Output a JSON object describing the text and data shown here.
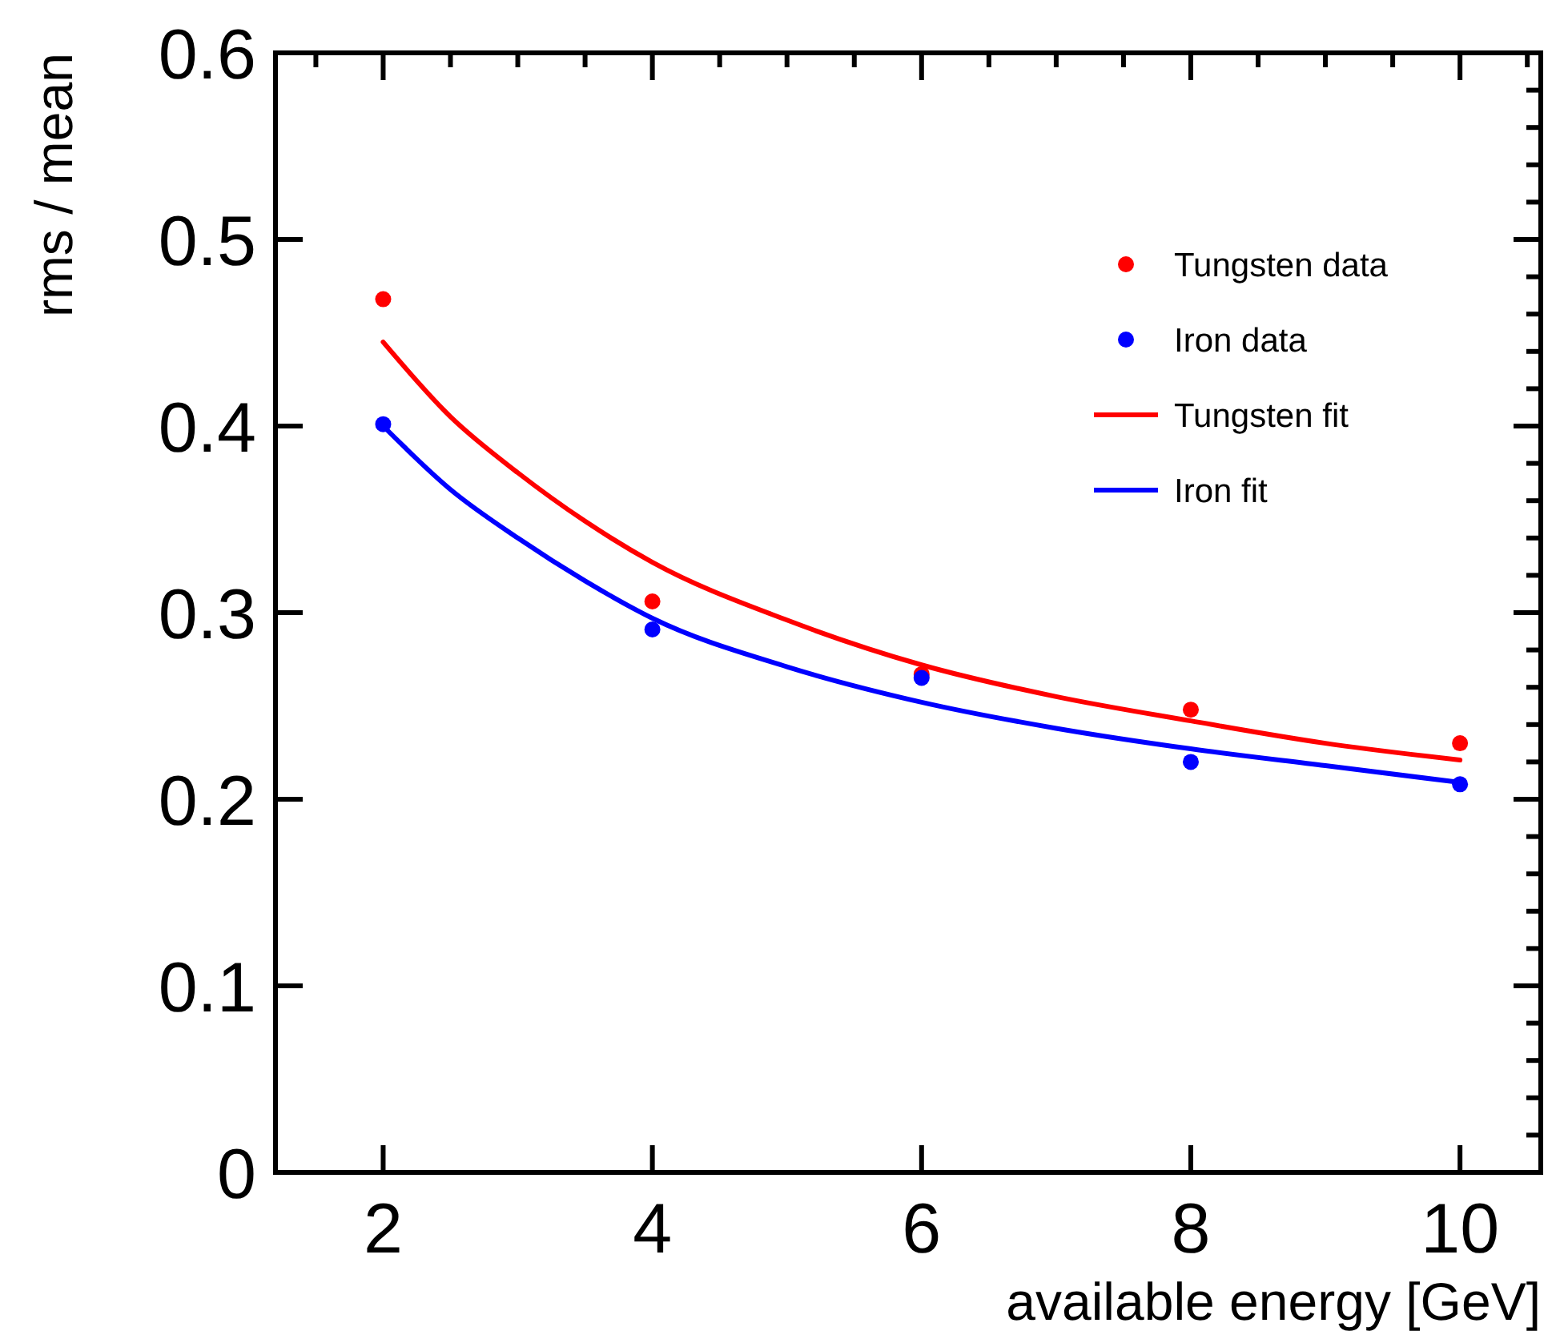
{
  "chart_data": {
    "type": "scatter",
    "xlabel": "available energy [GeV]",
    "ylabel": "rms / mean",
    "xlim": [
      1.2,
      10.6
    ],
    "ylim": [
      0,
      0.6
    ],
    "xticks": [
      2,
      4,
      6,
      8,
      10
    ],
    "yticks": [
      0,
      0.1,
      0.2,
      0.3,
      0.4,
      0.5,
      0.6
    ],
    "grid": false,
    "legend": "top right",
    "series": [
      {
        "name": "Tungsten data",
        "marker": "circle",
        "color": "#ff0000",
        "x": [
          2,
          4,
          6,
          8,
          10
        ],
        "values": [
          0.468,
          0.306,
          0.267,
          0.248,
          0.23
        ]
      },
      {
        "name": "Iron data",
        "marker": "circle",
        "color": "#0000ff",
        "x": [
          2,
          4,
          6,
          8,
          10
        ],
        "values": [
          0.401,
          0.291,
          0.265,
          0.22,
          0.208
        ]
      },
      {
        "name": "Tungsten fit",
        "type": "line",
        "marker": "none",
        "line_style": "solid",
        "color": "#ff0000",
        "x": [
          2,
          2.5,
          3,
          3.5,
          4,
          5,
          6,
          7,
          8,
          9,
          10
        ],
        "values": [
          0.445,
          0.405,
          0.375,
          0.349,
          0.327,
          0.296,
          0.272,
          0.255,
          0.242,
          0.23,
          0.221
        ]
      },
      {
        "name": "Iron fit",
        "type": "line",
        "marker": "none",
        "line_style": "solid",
        "color": "#0000ff",
        "x": [
          2,
          2.5,
          3,
          3.5,
          4,
          5,
          6,
          7,
          8,
          9,
          10
        ],
        "values": [
          0.4,
          0.366,
          0.34,
          0.317,
          0.297,
          0.271,
          0.252,
          0.238,
          0.227,
          0.218,
          0.209
        ]
      }
    ]
  }
}
